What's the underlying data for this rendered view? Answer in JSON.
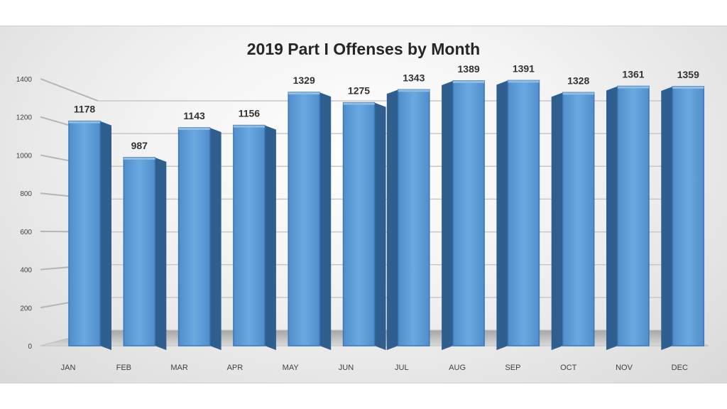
{
  "chart_data": {
    "type": "bar",
    "title": "2019 Part I Offenses by Month",
    "categories": [
      "JAN",
      "FEB",
      "MAR",
      "APR",
      "MAY",
      "JUN",
      "JUL",
      "AUG",
      "SEP",
      "OCT",
      "NOV",
      "DEC"
    ],
    "values": [
      1178,
      987,
      1143,
      1156,
      1329,
      1275,
      1343,
      1389,
      1391,
      1328,
      1361,
      1359
    ],
    "yticks": [
      "0",
      "200",
      "400",
      "600",
      "800",
      "1000",
      "1200",
      "1400"
    ],
    "ylim": [
      0,
      1400
    ],
    "grid": true,
    "legend": "none",
    "style": "3d-column",
    "colors": {
      "bar_front": "#5b9bd5",
      "bar_side": "#2f5f8f",
      "bar_top": "#8fbde6",
      "grid": "#bfbfbf"
    }
  }
}
